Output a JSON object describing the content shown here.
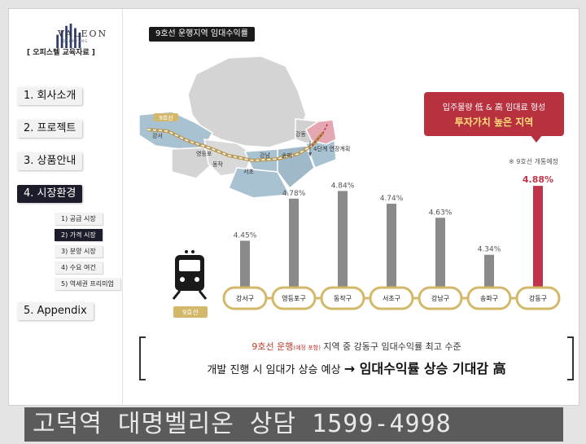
{
  "brand": {
    "name": "VALEON",
    "sub": "DAEMYUNG",
    "edu_label": "[ 오피스텔 교육자료 ]"
  },
  "nav": [
    {
      "label": "1. 회사소개",
      "active": false
    },
    {
      "label": "2. 프로젝트",
      "active": false
    },
    {
      "label": "3. 상품안내",
      "active": false
    },
    {
      "label": "4. 시장환경",
      "active": true
    },
    {
      "label": "5. Appendix",
      "active": false
    }
  ],
  "subnav": [
    {
      "label": "1) 공급 시장",
      "active": false
    },
    {
      "label": "2) 가격 시장",
      "active": true
    },
    {
      "label": "3) 분양 시장",
      "active": false
    },
    {
      "label": "4) 수요 여건",
      "active": false
    },
    {
      "label": "5) 역세권 프리미엄",
      "active": false
    }
  ],
  "section_title": "9호선 운행지역 임대수익률",
  "map": {
    "line_badge": "9호선",
    "districts": [
      "강서",
      "영등포",
      "동작",
      "강남",
      "송파",
      "서초",
      "강동"
    ],
    "extension_label": "4단계 연장계획"
  },
  "callout": {
    "line1": "입주물량 低 & 高 임대료 형성",
    "line2": "투자가치 높은 지역"
  },
  "note": "※ 9호선 개통예정",
  "train_label": "9호선",
  "colors": {
    "bar": "#8a8a8a",
    "highlight": "#c0344a",
    "station_ring": "#d4b86a",
    "map_fill": "#9fb9c9"
  },
  "chart_data": {
    "type": "bar",
    "categories": [
      "강서구",
      "영등포구",
      "동작구",
      "서초구",
      "강남구",
      "송파구",
      "강동구"
    ],
    "values": [
      4.45,
      4.78,
      4.84,
      4.74,
      4.63,
      4.34,
      4.88
    ],
    "labels": [
      "4.45%",
      "4.78%",
      "4.84%",
      "4.74%",
      "4.63%",
      "4.34%",
      "4.88%"
    ],
    "highlight_index": 6,
    "ylim": [
      4.0,
      4.9
    ],
    "title": "",
    "xlabel": "",
    "ylabel": ""
  },
  "bottom": {
    "line1_a": "9호선 운행",
    "line1_small": "(예정 포함)",
    "line1_b": " 지역 중 강동구 임대수익률 최고 수준",
    "line2_a": "개발 진행 시 임대가 상승 예상 ",
    "line2_arrow": "→",
    "line2_b": " 임대수익률 상승 기대감 高"
  },
  "banner": "고덕역 대명벨리온 상담  1599-4998"
}
